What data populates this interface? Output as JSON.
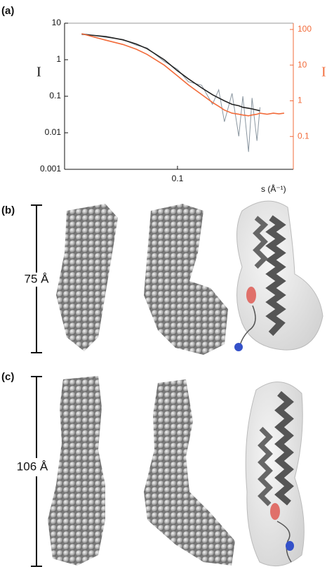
{
  "chart_data": {
    "type": "line",
    "panel_label": "(a)",
    "xlabel": "s (Å⁻¹)",
    "ylabel": "I",
    "y2label": "I",
    "x": [
      0.02,
      0.03,
      0.04,
      0.05,
      0.06,
      0.08,
      0.1,
      0.12,
      0.15,
      0.18,
      0.2,
      0.22,
      0.25,
      0.28,
      0.3,
      0.33,
      0.35,
      0.38,
      0.4,
      0.45,
      0.5,
      0.55,
      0.6
    ],
    "xlim": [
      0.015,
      0.7
    ],
    "xticks": [
      0.1
    ],
    "log_x": true,
    "ylim": [
      0.001,
      10
    ],
    "yticks": [
      10,
      1,
      0.1,
      0.01,
      0.001
    ],
    "log_y": true,
    "y2lim": [
      0.012,
      150
    ],
    "y2ticks": [
      100,
      10,
      1,
      0.1
    ],
    "log_y2": true,
    "series": [
      {
        "name": "data",
        "color": "#8a96a0",
        "values": [
          5.2,
          4.1,
          3.6,
          2.5,
          2.1,
          0.9,
          0.55,
          0.25,
          0.2,
          0.06,
          0.15,
          0.02,
          0.12,
          0.008,
          0.1,
          0.003,
          0.09,
          0.006,
          0.05,
          null,
          null,
          null,
          null
        ]
      },
      {
        "name": "fit",
        "color": "#222222",
        "values": [
          5,
          4.3,
          3.5,
          2.7,
          2,
          1,
          0.5,
          0.3,
          0.17,
          0.11,
          0.09,
          0.075,
          0.06,
          0.055,
          0.05,
          0.047,
          0.045,
          0.042,
          0.04,
          null,
          null,
          null,
          null
        ]
      },
      {
        "name": "model",
        "color": "#f26b3a",
        "axis": "y2",
        "values": [
          76,
          50,
          38,
          28,
          20,
          10,
          5,
          2.8,
          1.5,
          0.9,
          0.7,
          0.55,
          0.45,
          0.42,
          0.4,
          0.38,
          0.4,
          0.42,
          0.45,
          0.42,
          0.45,
          0.43,
          0.45
        ]
      }
    ]
  },
  "panels": [
    {
      "label": "(b)",
      "scale": "75 Å"
    },
    {
      "label": "(c)",
      "scale": "106 Å"
    }
  ]
}
